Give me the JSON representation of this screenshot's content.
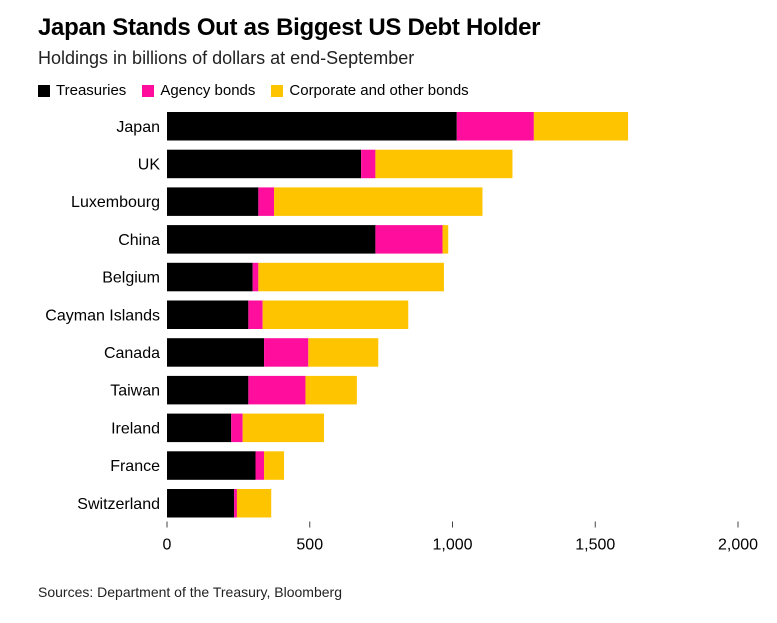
{
  "title": "Japan Stands Out as Biggest US Debt Holder",
  "subtitle": "Holdings in billions of dollars at end-September",
  "source": "Sources: Department of the Treasury, Bloomberg",
  "colors": {
    "treasuries": "#000000",
    "agency": "#ff0e9e",
    "corporate": "#ffc400",
    "axis": "#444444"
  },
  "chart_data": {
    "type": "bar",
    "orientation": "horizontal",
    "stacked": true,
    "title": "Japan Stands Out as Biggest US Debt Holder",
    "subtitle": "Holdings in billions of dollars at end-September",
    "categories": [
      "Japan",
      "UK",
      "Luxembourg",
      "China",
      "Belgium",
      "Cayman Islands",
      "Canada",
      "Taiwan",
      "Ireland",
      "France",
      "Switzerland"
    ],
    "series": [
      {
        "name": "Treasuries",
        "key": "treasuries",
        "values": [
          1015,
          680,
          320,
          730,
          300,
          285,
          340,
          285,
          225,
          310,
          235
        ]
      },
      {
        "name": "Agency bonds",
        "key": "agency",
        "values": [
          270,
          50,
          55,
          235,
          20,
          50,
          155,
          200,
          40,
          30,
          10
        ]
      },
      {
        "name": "Corporate and other bonds",
        "key": "corporate",
        "values": [
          330,
          480,
          730,
          20,
          650,
          510,
          245,
          180,
          285,
          70,
          120
        ]
      }
    ],
    "xlim": [
      0,
      2000
    ],
    "xticks": [
      0,
      500,
      1000,
      1500,
      2000
    ],
    "xtick_labels": [
      "0",
      "500",
      "1,000",
      "1,500",
      "2,000"
    ],
    "xlabel": "",
    "ylabel": "",
    "legend_position": "top-left"
  }
}
